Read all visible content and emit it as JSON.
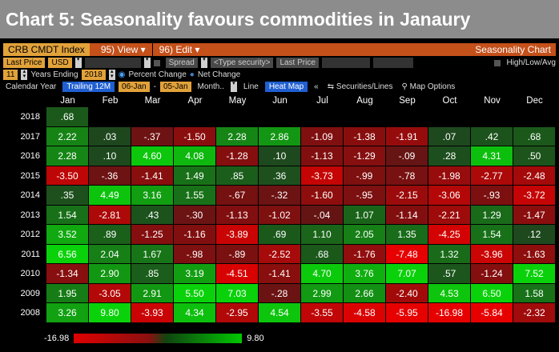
{
  "header": {
    "title": "Chart 5: Seasonality favours commodities in Janaury"
  },
  "toolbar": {
    "ticker": "CRB CMDT Index",
    "view_menu": "95) View ▾",
    "edit_menu": "96) Edit ▾",
    "chart_title": "Seasonality Chart"
  },
  "settings_row": {
    "price_label": "Last Price",
    "currency": "USD",
    "spread_label": "Spread",
    "security_placeholder": "<Type security>",
    "security_price": "Last Price",
    "high_low_avg": "High/Low/Avg"
  },
  "years_row": {
    "years_count": "11",
    "years_ending_label": "Years Ending",
    "end_year": "2018",
    "percent_change": "Percent Change",
    "net_change": "Net Change"
  },
  "options_row": {
    "calendar_year": "Calendar Year",
    "trailing": "Trailing 12M",
    "from_date": "06-Jan",
    "to_date": "05-Jan",
    "month": "Month..",
    "line": "Line",
    "heat_map": "Heat Map",
    "collapse": "«",
    "securities_lines": "Securities/Lines",
    "map_options": "Map Options"
  },
  "months": [
    "Jan",
    "Feb",
    "Mar",
    "Apr",
    "May",
    "Jun",
    "Jul",
    "Aug",
    "Sep",
    "Oct",
    "Nov",
    "Dec"
  ],
  "rows": [
    {
      "year": "2018",
      "values": [
        ".68",
        "",
        "",
        "",
        "",
        "",
        "",
        "",
        "",
        "",
        "",
        ""
      ]
    },
    {
      "year": "2017",
      "values": [
        "2.22",
        ".03",
        "-.37",
        "-1.50",
        "2.28",
        "2.86",
        "-1.09",
        "-1.38",
        "-1.91",
        ".07",
        ".42",
        ".68"
      ]
    },
    {
      "year": "2016",
      "values": [
        "2.28",
        ".10",
        "4.60",
        "4.08",
        "-1.28",
        ".10",
        "-1.13",
        "-1.29",
        "-.09",
        ".28",
        "4.31",
        ".50"
      ]
    },
    {
      "year": "2015",
      "values": [
        "-3.50",
        "-.36",
        "-1.41",
        "1.49",
        ".85",
        ".36",
        "-3.73",
        "-.99",
        "-.78",
        "-1.98",
        "-2.77",
        "-2.48"
      ]
    },
    {
      "year": "2014",
      "values": [
        ".35",
        "4.49",
        "3.16",
        "1.55",
        "-.67",
        "-.32",
        "-1.60",
        "-.95",
        "-2.15",
        "-3.06",
        "-.93",
        "-3.72"
      ]
    },
    {
      "year": "2013",
      "values": [
        "1.54",
        "-2.81",
        ".43",
        "-.30",
        "-1.13",
        "-1.02",
        "-.04",
        "1.07",
        "-1.14",
        "-2.21",
        "1.29",
        "-1.47"
      ]
    },
    {
      "year": "2012",
      "values": [
        "3.52",
        ".89",
        "-1.25",
        "-1.16",
        "-3.89",
        ".69",
        "1.10",
        "2.05",
        "1.35",
        "-4.25",
        "1.54",
        ".12"
      ]
    },
    {
      "year": "2011",
      "values": [
        "6.56",
        "2.04",
        "1.67",
        "-.98",
        "-.89",
        "-2.52",
        ".68",
        "-1.76",
        "-7.48",
        "1.32",
        "-3.96",
        "-1.63"
      ]
    },
    {
      "year": "2010",
      "values": [
        "-1.34",
        "2.90",
        ".85",
        "3.19",
        "-4.51",
        "-1.41",
        "4.70",
        "3.76",
        "7.07",
        ".57",
        "-1.24",
        "7.52"
      ]
    },
    {
      "year": "2009",
      "values": [
        "1.95",
        "-3.05",
        "2.91",
        "5.50",
        "7.03",
        "-.28",
        "2.99",
        "2.66",
        "-2.40",
        "4.53",
        "6.50",
        "1.58"
      ]
    },
    {
      "year": "2008",
      "values": [
        "3.26",
        "9.80",
        "-3.93",
        "4.34",
        "-2.95",
        "4.54",
        "-3.55",
        "-4.58",
        "-5.95",
        "-16.98",
        "-5.84",
        "-2.32"
      ]
    }
  ],
  "legend": {
    "min_label": "-16.98",
    "max_label": "9.80",
    "min": -16.98,
    "max": 9.8
  },
  "colors": {
    "positive": "#00c800",
    "negative": "#e00000",
    "accent": "#c4501a"
  }
}
